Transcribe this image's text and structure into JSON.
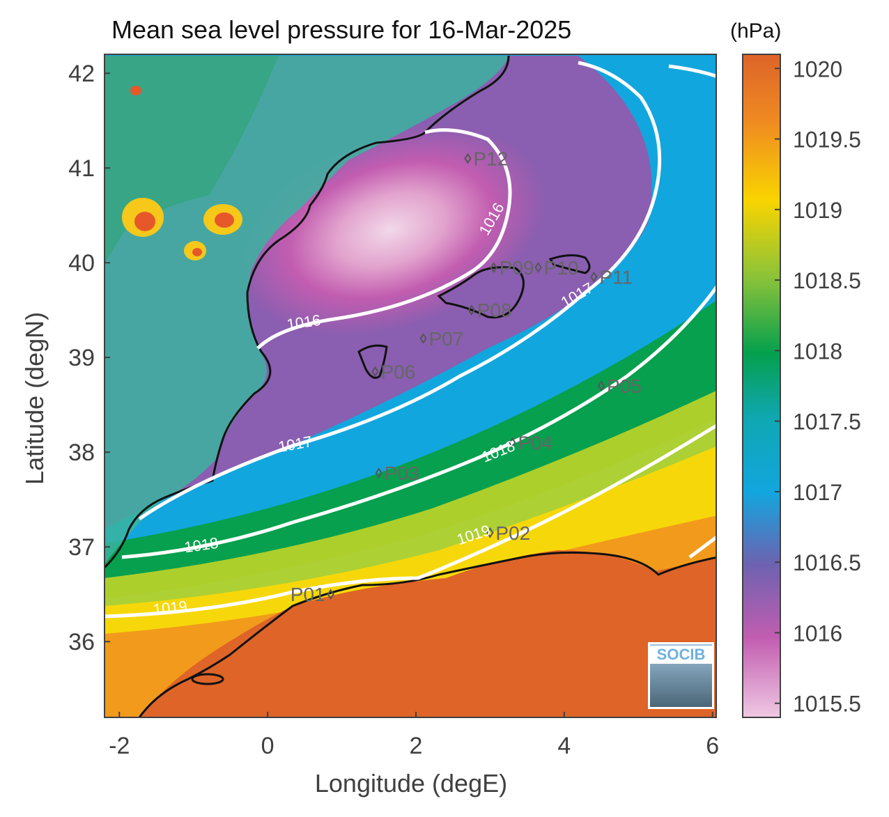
{
  "title": "Mean sea level pressure for 16-Mar-2025",
  "units": "(hPa)",
  "xlabel": "Longitude (degE)",
  "ylabel": "Latitude (degN)",
  "logo_text": "SOCIB",
  "x_ticks": [
    "-2",
    "0",
    "2",
    "4",
    "6"
  ],
  "y_ticks": [
    "42",
    "41",
    "40",
    "39",
    "38",
    "37",
    "36"
  ],
  "colorbar_ticks": [
    "1020",
    "1019.5",
    "1019",
    "1018.5",
    "1018",
    "1017.5",
    "1017",
    "1016.5",
    "1016",
    "1015.5"
  ],
  "contour_labels": [
    "1016",
    "1016",
    "1017",
    "1017",
    "1018",
    "1018",
    "1019",
    "1019"
  ],
  "stations": [
    "P01",
    "P02",
    "P03",
    "P04",
    "P05",
    "P06",
    "P07",
    "P08",
    "P09",
    "P10",
    "P11",
    "P12"
  ],
  "chart_data": {
    "type": "heatmap",
    "title": "Mean sea level pressure for 16-Mar-2025",
    "xlabel": "Longitude (degE)",
    "ylabel": "Latitude (degN)",
    "colorbar_label": "(hPa)",
    "xlim": [
      -2.2,
      6.05
    ],
    "ylim": [
      35.2,
      42.2
    ],
    "clim": [
      1015.4,
      1020.1
    ],
    "contour_levels": [
      1016,
      1017,
      1018,
      1019
    ],
    "stations": [
      {
        "name": "P01",
        "lon": 0.85,
        "lat": 36.5
      },
      {
        "name": "P02",
        "lon": 3.0,
        "lat": 37.15
      },
      {
        "name": "P03",
        "lon": 1.5,
        "lat": 37.78
      },
      {
        "name": "P04",
        "lon": 3.3,
        "lat": 38.1
      },
      {
        "name": "P05",
        "lon": 4.5,
        "lat": 38.7
      },
      {
        "name": "P06",
        "lon": 1.45,
        "lat": 38.85
      },
      {
        "name": "P07",
        "lon": 2.1,
        "lat": 39.2
      },
      {
        "name": "P08",
        "lon": 2.75,
        "lat": 39.5
      },
      {
        "name": "P09",
        "lon": 3.05,
        "lat": 39.95
      },
      {
        "name": "P10",
        "lon": 3.65,
        "lat": 39.95
      },
      {
        "name": "P11",
        "lon": 4.4,
        "lat": 39.85
      },
      {
        "name": "P12",
        "lon": 2.7,
        "lat": 41.1
      }
    ]
  }
}
